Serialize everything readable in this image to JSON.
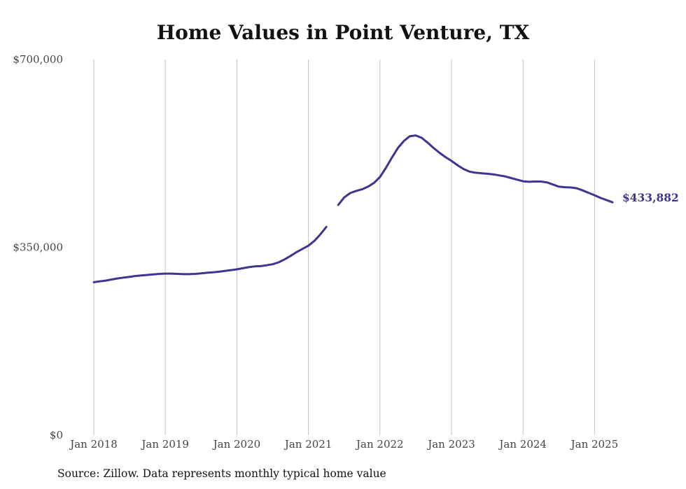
{
  "chart_data": {
    "type": "line",
    "title": "Home Values in Point Venture, TX",
    "source": "Source: Zillow. Data represents monthly typical home value",
    "ylim": [
      0,
      700000
    ],
    "y_ticks": [
      {
        "value": 0,
        "label": "$0"
      },
      {
        "value": 350000,
        "label": "$350,000"
      },
      {
        "value": 700000,
        "label": "$700,000"
      }
    ],
    "x_range": [
      "2018-01",
      "2025-12"
    ],
    "x_ticks": [
      {
        "date": "2018-01",
        "label": "Jan 2018"
      },
      {
        "date": "2019-01",
        "label": "Jan 2019"
      },
      {
        "date": "2020-01",
        "label": "Jan 2020"
      },
      {
        "date": "2021-01",
        "label": "Jan 2021"
      },
      {
        "date": "2022-01",
        "label": "Jan 2022"
      },
      {
        "date": "2023-01",
        "label": "Jan 2023"
      },
      {
        "date": "2024-01",
        "label": "Jan 2024"
      },
      {
        "date": "2025-01",
        "label": "Jan 2025"
      }
    ],
    "grid": {
      "vertical": true,
      "horizontal": false
    },
    "line_color": "#3d3590",
    "series": [
      {
        "segments": [
          [
            [
              "2018-01",
              285000
            ],
            [
              "2018-02",
              286500
            ],
            [
              "2018-03",
              288000
            ],
            [
              "2018-04",
              290000
            ],
            [
              "2018-05",
              292000
            ],
            [
              "2018-06",
              293500
            ],
            [
              "2018-07",
              295000
            ],
            [
              "2018-08",
              296500
            ],
            [
              "2018-09",
              297500
            ],
            [
              "2018-10",
              298500
            ],
            [
              "2018-11",
              299500
            ],
            [
              "2018-12",
              300500
            ],
            [
              "2019-01",
              301000
            ],
            [
              "2019-02",
              301000
            ],
            [
              "2019-03",
              300500
            ],
            [
              "2019-04",
              300000
            ],
            [
              "2019-05",
              300000
            ],
            [
              "2019-06",
              300500
            ],
            [
              "2019-07",
              301500
            ],
            [
              "2019-08",
              302500
            ],
            [
              "2019-09",
              303500
            ],
            [
              "2019-10",
              304500
            ],
            [
              "2019-11",
              306000
            ],
            [
              "2019-12",
              307500
            ],
            [
              "2020-01",
              309000
            ],
            [
              "2020-02",
              311000
            ],
            [
              "2020-03",
              313000
            ],
            [
              "2020-04",
              314500
            ],
            [
              "2020-05",
              315000
            ],
            [
              "2020-06",
              316500
            ],
            [
              "2020-07",
              318500
            ],
            [
              "2020-08",
              322000
            ],
            [
              "2020-09",
              327500
            ],
            [
              "2020-10",
              334000
            ],
            [
              "2020-11",
              341000
            ],
            [
              "2020-12",
              347000
            ],
            [
              "2021-01",
              353000
            ],
            [
              "2021-02",
              362000
            ],
            [
              "2021-03",
              374000
            ],
            [
              "2021-04",
              388000
            ]
          ],
          [
            [
              "2021-06",
              429000
            ],
            [
              "2021-07",
              443000
            ],
            [
              "2021-08",
              451000
            ],
            [
              "2021-09",
              455000
            ],
            [
              "2021-10",
              458000
            ],
            [
              "2021-11",
              463000
            ],
            [
              "2021-12",
              470000
            ],
            [
              "2022-01",
              481000
            ],
            [
              "2022-02",
              498000
            ],
            [
              "2022-03",
              517000
            ],
            [
              "2022-04",
              535000
            ],
            [
              "2022-05",
              548000
            ],
            [
              "2022-06",
              557000
            ],
            [
              "2022-07",
              558500
            ],
            [
              "2022-08",
              554000
            ],
            [
              "2022-09",
              545000
            ],
            [
              "2022-10",
              535000
            ],
            [
              "2022-11",
              526000
            ],
            [
              "2022-12",
              518000
            ],
            [
              "2023-01",
              511000
            ],
            [
              "2023-02",
              503000
            ],
            [
              "2023-03",
              496000
            ],
            [
              "2023-04",
              491000
            ],
            [
              "2023-05",
              489000
            ],
            [
              "2023-06",
              488000
            ],
            [
              "2023-07",
              487000
            ],
            [
              "2023-08",
              486000
            ],
            [
              "2023-09",
              484000
            ],
            [
              "2023-10",
              482000
            ],
            [
              "2023-11",
              479000
            ],
            [
              "2023-12",
              476000
            ],
            [
              "2024-01",
              473000
            ],
            [
              "2024-02",
              472000
            ],
            [
              "2024-03",
              472500
            ],
            [
              "2024-04",
              472500
            ],
            [
              "2024-05",
              471000
            ],
            [
              "2024-06",
              467000
            ],
            [
              "2024-07",
              463000
            ],
            [
              "2024-08",
              462000
            ],
            [
              "2024-09",
              461500
            ],
            [
              "2024-10",
              460000
            ],
            [
              "2024-11",
              456000
            ],
            [
              "2024-12",
              451500
            ],
            [
              "2025-01",
              447000
            ],
            [
              "2025-02",
              442000
            ],
            [
              "2025-03",
              438000
            ],
            [
              "2025-04",
              433882
            ]
          ]
        ]
      }
    ],
    "end_label": "$433,882"
  }
}
